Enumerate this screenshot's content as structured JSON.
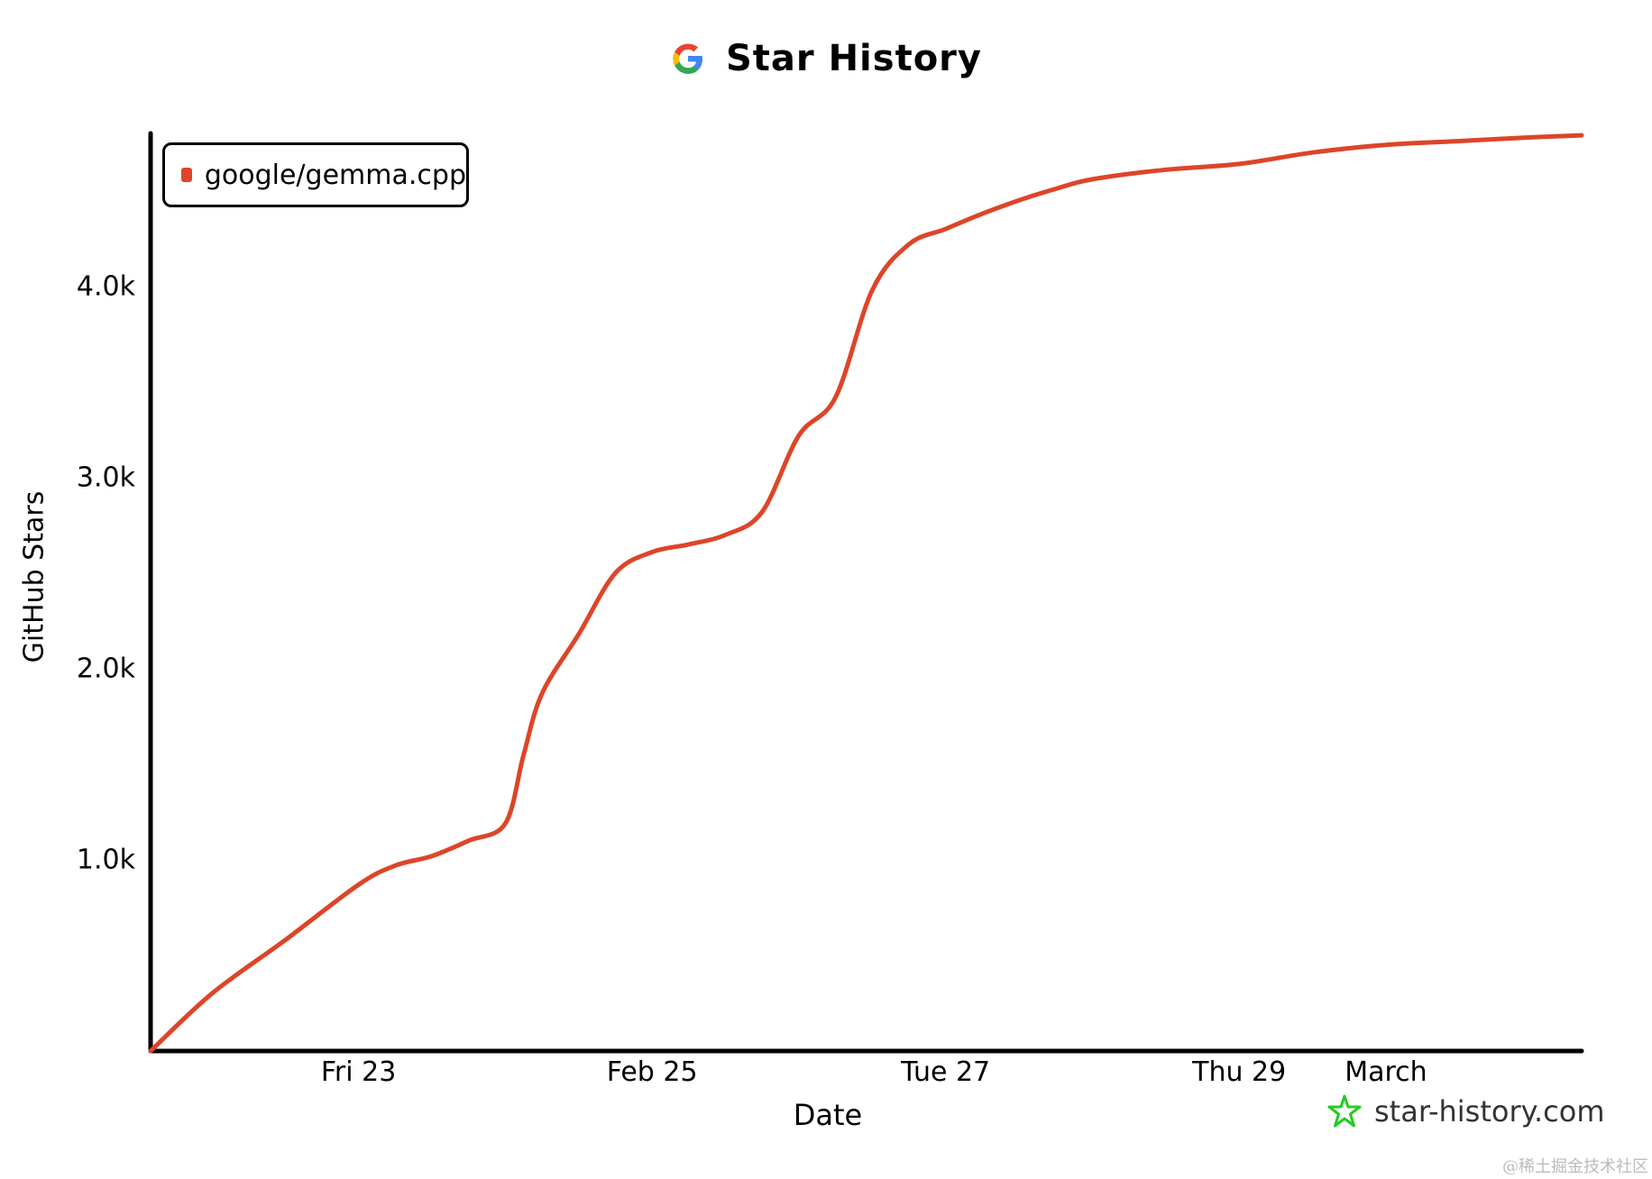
{
  "title": "Star History",
  "watermark": "star-history.com",
  "credit": "@稀土掘金技术社区",
  "colors": {
    "series": "#dd4528",
    "axis": "#000000",
    "google_blue": "#4285F4",
    "google_red": "#EA4335",
    "google_yellow": "#FBBC05",
    "google_green": "#34A853",
    "watermark_star": "#22cc22"
  },
  "chart_data": {
    "type": "line",
    "title": "Star History",
    "xlabel": "Date",
    "ylabel": "GitHub Stars",
    "x_ticks": [
      {
        "label": "Fri 23",
        "date": "2024-02-23"
      },
      {
        "label": "Feb 25",
        "date": "2024-02-25"
      },
      {
        "label": "Tue 27",
        "date": "2024-02-27"
      },
      {
        "label": "Thu 29",
        "date": "2024-02-29"
      },
      {
        "label": "March",
        "date": "2024-03-01"
      }
    ],
    "y_ticks": [
      {
        "label": "1.0k",
        "value": 1000
      },
      {
        "label": "2.0k",
        "value": 2000
      },
      {
        "label": "3.0k",
        "value": 3000
      },
      {
        "label": "4.0k",
        "value": 4000
      }
    ],
    "xlim": [
      "2024-02-21T14:00",
      "2024-03-02T08:00"
    ],
    "ylim": [
      0,
      4800
    ],
    "grid": false,
    "legend_position": "top-left",
    "series": [
      {
        "name": "google/gemma.cpp",
        "x": [
          "2024-02-21T14:00",
          "2024-02-22T00:00",
          "2024-02-22T12:00",
          "2024-02-23T00:00",
          "2024-02-23T06:00",
          "2024-02-23T12:00",
          "2024-02-23T18:00",
          "2024-02-24T00:00",
          "2024-02-24T03:00",
          "2024-02-24T06:00",
          "2024-02-24T12:00",
          "2024-02-24T18:00",
          "2024-02-25T00:00",
          "2024-02-25T06:00",
          "2024-02-25T12:00",
          "2024-02-25T18:00",
          "2024-02-26T00:00",
          "2024-02-26T06:00",
          "2024-02-26T12:00",
          "2024-02-26T18:00",
          "2024-02-27T00:00",
          "2024-02-27T06:00",
          "2024-02-27T12:00",
          "2024-02-27T18:00",
          "2024-02-28T00:00",
          "2024-02-28T12:00",
          "2024-02-29T00:00",
          "2024-02-29T12:00",
          "2024-03-01T00:00",
          "2024-03-01T12:00",
          "2024-03-02T00:00",
          "2024-03-02T08:00"
        ],
        "y": [
          0,
          300,
          580,
          870,
          970,
          1020,
          1100,
          1190,
          1550,
          1870,
          2180,
          2500,
          2610,
          2650,
          2700,
          2820,
          3220,
          3420,
          3980,
          4220,
          4300,
          4380,
          4450,
          4510,
          4560,
          4610,
          4640,
          4700,
          4740,
          4760,
          4780,
          4790
        ]
      }
    ]
  }
}
